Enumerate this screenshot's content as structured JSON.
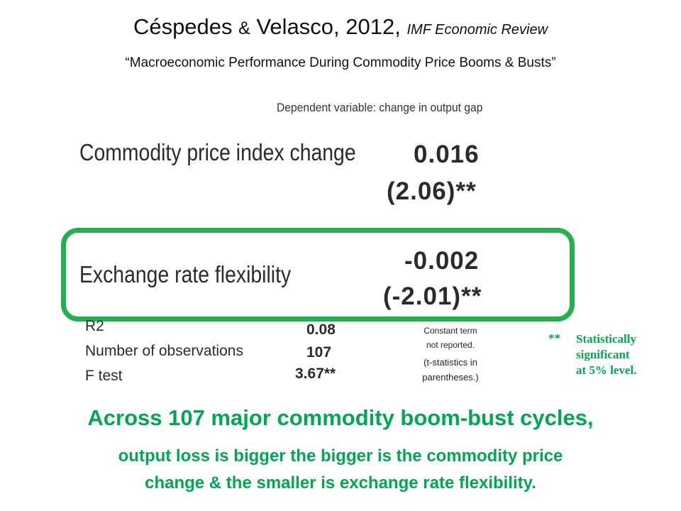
{
  "header": {
    "authors": "Céspedes",
    "ampersand": "&",
    "coauthor": "Velasco",
    "year": ", 2012,",
    "journal": "IMF Economic Review",
    "paper_title": "“Macroeconomic Performance During Commodity Price Booms & Busts”"
  },
  "table": {
    "dependent_variable": "Dependent variable: change in output gap",
    "rows": [
      {
        "label": "Commodity price index change",
        "coef": "0.016",
        "tstat": "(2.06)**"
      },
      {
        "label": "Exchange rate flexibility",
        "coef": "-0.002",
        "tstat": "(-2.01)**"
      }
    ],
    "stats": [
      {
        "label": "R2",
        "value": "0.08"
      },
      {
        "label": "Number of observations",
        "value": "107"
      },
      {
        "label": "F test",
        "value": "3.67**"
      }
    ]
  },
  "notes": {
    "constant_line1": "Constant term",
    "constant_line2": "not reported.",
    "tstat_line1": "(t-statistics in",
    "tstat_line2": "parentheses.)",
    "sig_stars": "**",
    "sig_line1": "Statistically",
    "sig_line2": "significant",
    "sig_line3": "at 5% level."
  },
  "conclusion": {
    "line1": "Across 107 major commodity boom-bust cycles,",
    "line2": "output loss is bigger the bigger is the commodity price",
    "line3": "change & the smaller is exchange rate flexibility."
  },
  "colors": {
    "accent_green": "#00a850",
    "highlight_box": "#23b14d"
  }
}
